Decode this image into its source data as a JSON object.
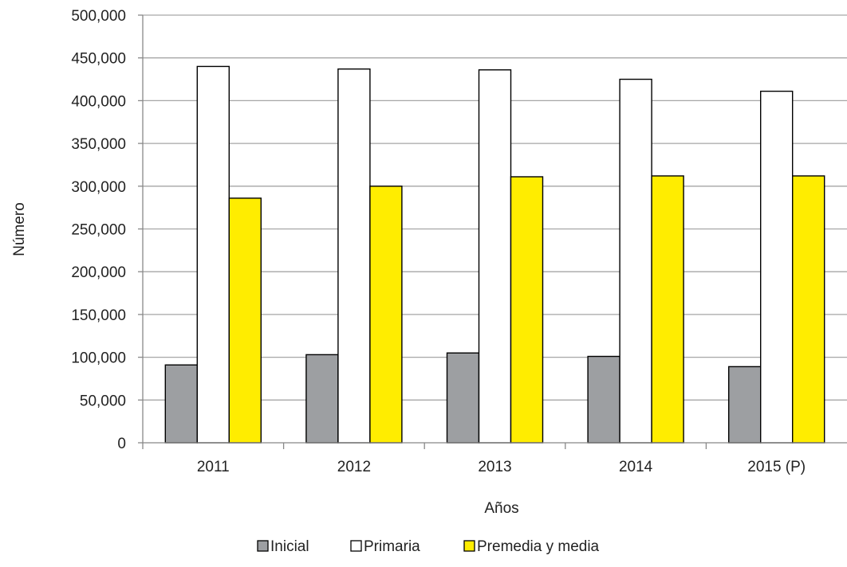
{
  "chart_data": {
    "type": "bar",
    "title": "",
    "xlabel": "Años",
    "ylabel": "Número",
    "categories": [
      "2011",
      "2012",
      "2013",
      "2014",
      "2015 (P)"
    ],
    "ylim": [
      0,
      500000
    ],
    "yticks": [
      "0",
      "50,000",
      "100,000",
      "150,000",
      "200,000",
      "250,000",
      "300,000",
      "350,000",
      "400,000",
      "450,000",
      "500,000"
    ],
    "grid": true,
    "legend_position": "bottom",
    "series": [
      {
        "name": "Inicial",
        "color": "#9d9fa2",
        "values": [
          91000,
          103000,
          105000,
          101000,
          89000
        ]
      },
      {
        "name": "Primaria",
        "color": "#ffffff",
        "values": [
          440000,
          437000,
          436000,
          425000,
          411000
        ]
      },
      {
        "name": "Premedia y media",
        "color": "#ffed00",
        "values": [
          286000,
          300000,
          311000,
          312000,
          312000
        ]
      }
    ]
  }
}
